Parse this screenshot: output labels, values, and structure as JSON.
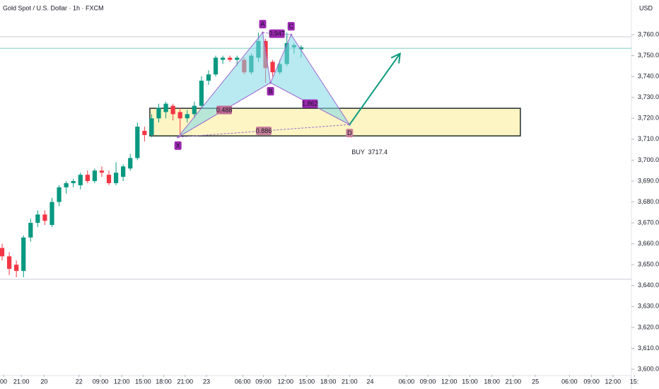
{
  "chart_data": {
    "type": "candlestick",
    "title": "Gold Spot / U.S. Dollar · 1h · FXCM",
    "currency": "USD",
    "up_color": "#089981",
    "down_color": "#f23645",
    "open": [
      3658,
      3654,
      3650,
      3647,
      3663,
      3670,
      3674,
      3669,
      3680,
      3687,
      3689,
      3688,
      3693,
      3690,
      3695,
      3693,
      3689,
      3692,
      3696,
      3701,
      3714,
      3712,
      3720,
      3723,
      3726,
      3723,
      3720,
      3722,
      3726,
      3738,
      3741,
      3748,
      3749,
      3748,
      3748,
      3742,
      3749,
      3757,
      3747,
      3742,
      3746,
      3754,
      3753
    ],
    "high": [
      3660,
      3656,
      3652,
      3664,
      3672,
      3676,
      3676,
      3682,
      3688,
      3690,
      3691,
      3694,
      3695,
      3696,
      3697,
      3695,
      3699,
      3698,
      3703,
      3718,
      3716,
      3722,
      3727,
      3728,
      3727,
      3725,
      3724,
      3728,
      3740,
      3743,
      3750,
      3750,
      3750,
      3750,
      3749,
      3751,
      3761,
      3758,
      3748,
      3748,
      3761,
      3756,
      3755
    ],
    "low": [
      3652,
      3645,
      3644,
      3644,
      3661,
      3668,
      3669,
      3668,
      3678,
      3684,
      3687,
      3686,
      3689,
      3689,
      3692,
      3688,
      3688,
      3690,
      3695,
      3700,
      3709,
      3711,
      3718,
      3720,
      3719,
      3711,
      3718,
      3720,
      3725,
      3736,
      3740,
      3746,
      3747,
      3745,
      3741,
      3741,
      3747,
      3737,
      3740,
      3741,
      3745,
      3751,
      3749
    ],
    "close": [
      3654,
      3648,
      3647,
      3663,
      3670,
      3674,
      3671,
      3680,
      3687,
      3689,
      3690,
      3693,
      3690,
      3695,
      3694,
      3689,
      3694,
      3697,
      3701,
      3716,
      3712,
      3720,
      3725,
      3727,
      3722,
      3720,
      3722,
      3726,
      3738,
      3741,
      3749,
      3749,
      3748,
      3749,
      3742,
      3750,
      3757,
      3744,
      3742,
      3746,
      3756,
      3755,
      3754
    ],
    "xlim": [
      -0.3,
      88.4
    ],
    "xticks": [
      {
        "value": 0.2,
        "label": "00"
      },
      {
        "value": 2.7,
        "label": "21:00"
      },
      {
        "value": 5.9,
        "label": "20"
      },
      {
        "value": 10.8,
        "label": "22"
      },
      {
        "value": 13.8,
        "label": "09:00"
      },
      {
        "value": 16.8,
        "label": "12:00"
      },
      {
        "value": 19.8,
        "label": "15:00"
      },
      {
        "value": 22.7,
        "label": "18:00"
      },
      {
        "value": 25.7,
        "label": "21:00"
      },
      {
        "value": 28.7,
        "label": "23"
      },
      {
        "value": 33.8,
        "label": "06:00"
      },
      {
        "value": 36.7,
        "label": "09:00"
      },
      {
        "value": 39.8,
        "label": "12:00"
      },
      {
        "value": 42.8,
        "label": "15:00"
      },
      {
        "value": 45.8,
        "label": "18:00"
      },
      {
        "value": 48.8,
        "label": "21:00"
      },
      {
        "value": 51.7,
        "label": "24"
      },
      {
        "value": 56.8,
        "label": "06:00"
      },
      {
        "value": 59.8,
        "label": "09:00"
      },
      {
        "value": 62.8,
        "label": "12:00"
      },
      {
        "value": 65.7,
        "label": "15:00"
      },
      {
        "value": 68.8,
        "label": "18:00"
      },
      {
        "value": 71.8,
        "label": "21:00"
      },
      {
        "value": 74.9,
        "label": "25"
      },
      {
        "value": 79.7,
        "label": "06:00"
      },
      {
        "value": 82.8,
        "label": "09:00"
      },
      {
        "value": 85.8,
        "label": "12:00"
      },
      {
        "value": 88.8,
        "label": "15:"
      }
    ],
    "ylim": [
      3597.3,
      3776.6
    ],
    "yticks": [
      {
        "value": 3600,
        "label": "3,600.00"
      },
      {
        "value": 3610,
        "label": "3,610.00"
      },
      {
        "value": 3620,
        "label": "3,620.00"
      },
      {
        "value": 3630,
        "label": "3,630.00"
      },
      {
        "value": 3640,
        "label": "3,640.00"
      },
      {
        "value": 3650,
        "label": "3,650.00"
      },
      {
        "value": 3660,
        "label": "3,660.00"
      },
      {
        "value": 3670,
        "label": "3,670.00"
      },
      {
        "value": 3680,
        "label": "3,680.00"
      },
      {
        "value": 3690,
        "label": "3,690.00"
      },
      {
        "value": 3700,
        "label": "3,700.00"
      },
      {
        "value": 3710,
        "label": "3,710.00"
      },
      {
        "value": 3720,
        "label": "3,720.00"
      },
      {
        "value": 3730,
        "label": "3,730.00"
      },
      {
        "value": 3740,
        "label": "3,740.00"
      },
      {
        "value": 3750,
        "label": "3,750.00"
      },
      {
        "value": 3760,
        "label": "3,760.00"
      }
    ],
    "hlines": [
      {
        "value": 3759,
        "color": "#c9ccd3"
      },
      {
        "value": 3753.5,
        "color": "#7fcfc4"
      },
      {
        "value": 3643,
        "color": "#c9ccd3"
      }
    ],
    "zone": {
      "x": [
        20.75,
        72.8
      ],
      "y": [
        3711.6,
        3724.8
      ],
      "fill": "#fdf3b8",
      "color": "#1f2d2b"
    },
    "pattern": {
      "points": [
        {
          "label": "X",
          "x": 24.7,
          "y": 3711
        },
        {
          "label": "A",
          "x": 36.6,
          "y": 3761
        },
        {
          "label": "B",
          "x": 37.7,
          "y": 3737
        },
        {
          "label": "C",
          "x": 40.6,
          "y": 3760
        },
        {
          "label": "D",
          "x": 48.8,
          "y": 3717
        }
      ],
      "ratios": [
        {
          "label": "0.488",
          "between": [
            "X",
            "B"
          ],
          "color": "#c06b94"
        },
        {
          "label": "0.886",
          "between": [
            "X",
            "D"
          ],
          "color": "#c9819c"
        },
        {
          "label": "0.947",
          "between": [
            "A",
            "C"
          ],
          "color": "#9c27b0"
        },
        {
          "label": "1.862",
          "between": [
            "B",
            "D"
          ],
          "color": "#9c27b0"
        }
      ],
      "color": "#9c6bd0",
      "fill": "#7fd8e6"
    },
    "arrow": {
      "x": [
        48.8,
        55.9
      ],
      "y": [
        3717,
        3751
      ],
      "color": "#0e9b7f"
    },
    "signal": {
      "label": "BUY  3717.4",
      "x": 48.8,
      "y": 3710.5,
      "color": "#0e9b7f"
    }
  }
}
